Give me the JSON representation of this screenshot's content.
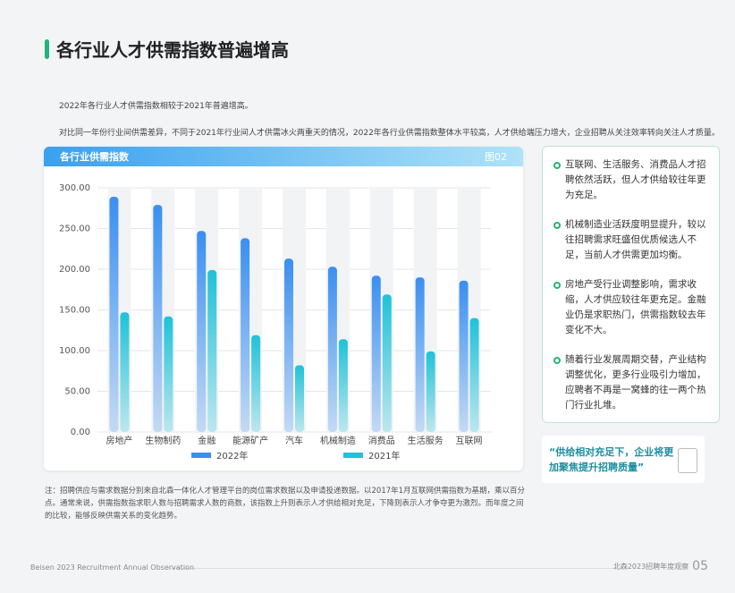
{
  "title": "各行业人才供需指数普遍增高",
  "intro": [
    "2022年各行业人才供需指数相较于2021年普遍增高。",
    "对比同一年份行业间供需差异，不同于2021年行业间人才供需冰火两重天的情况，2022年各行业供需指数整体水平较高，人才供给端压力增大，企业招聘从关注效率转向关注人才质量。"
  ],
  "card": {
    "title": "各行业供需指数",
    "figure": "图02"
  },
  "chart_data": {
    "type": "bar",
    "categories": [
      "房地产",
      "生物制药",
      "金融",
      "能源矿产",
      "汽车",
      "机械制造",
      "消费品",
      "生活服务",
      "互联网"
    ],
    "series": [
      {
        "name": "2022年",
        "values": [
          289,
          279,
          247,
          238,
          213,
          203,
          192,
          190,
          186
        ],
        "color": "#3a8ff0"
      },
      {
        "name": "2021年",
        "values": [
          147,
          142,
          199,
          119,
          82,
          114,
          169,
          99,
          140
        ],
        "color": "#1fc2d8"
      }
    ],
    "yticks": [
      "0.00",
      "50.00",
      "100.00",
      "150.00",
      "200.00",
      "250.00",
      "300.00"
    ],
    "ylim": [
      0,
      300
    ],
    "grid": true,
    "legend": "bottom"
  },
  "points": [
    "互联网、生活服务、消费品人才招聘依然活跃，但人才供给较往年更为充足。",
    "机械制造业活跃度明显提升，较以往招聘需求旺盛但优质候选人不足，当前人才供需更加均衡。",
    "房地产受行业调整影响，需求收缩，人才供应较往年更充足。金融业仍是求职热门，供需指数较去年变化不大。",
    "随着行业发展周期交替，产业结构调整优化，更多行业吸引力增加，应聘者不再是一窝蜂的往一两个热门行业扎堆。"
  ],
  "quote": "“供给相对充足下，企业将更加聚焦提升招聘质量”",
  "note": "注：招聘供应与需求数据分别来自北森一体化人才管理平台的岗位需求数据以及申请投递数据。以2017年1月互联网供需指数为基期，乘以百分点。通常来说，供需指数指求职人数与招聘需求人数的商数，该指数上升则表示人才供给相对充足，下降则表示人才争夺更为激烈。而年度之间的比较，能够反映供需关系的变化趋势。",
  "footer": {
    "left": "Beisen 2023 Recruitment Annual Observation",
    "right": "北森2023招聘年度观察",
    "page": "05"
  }
}
